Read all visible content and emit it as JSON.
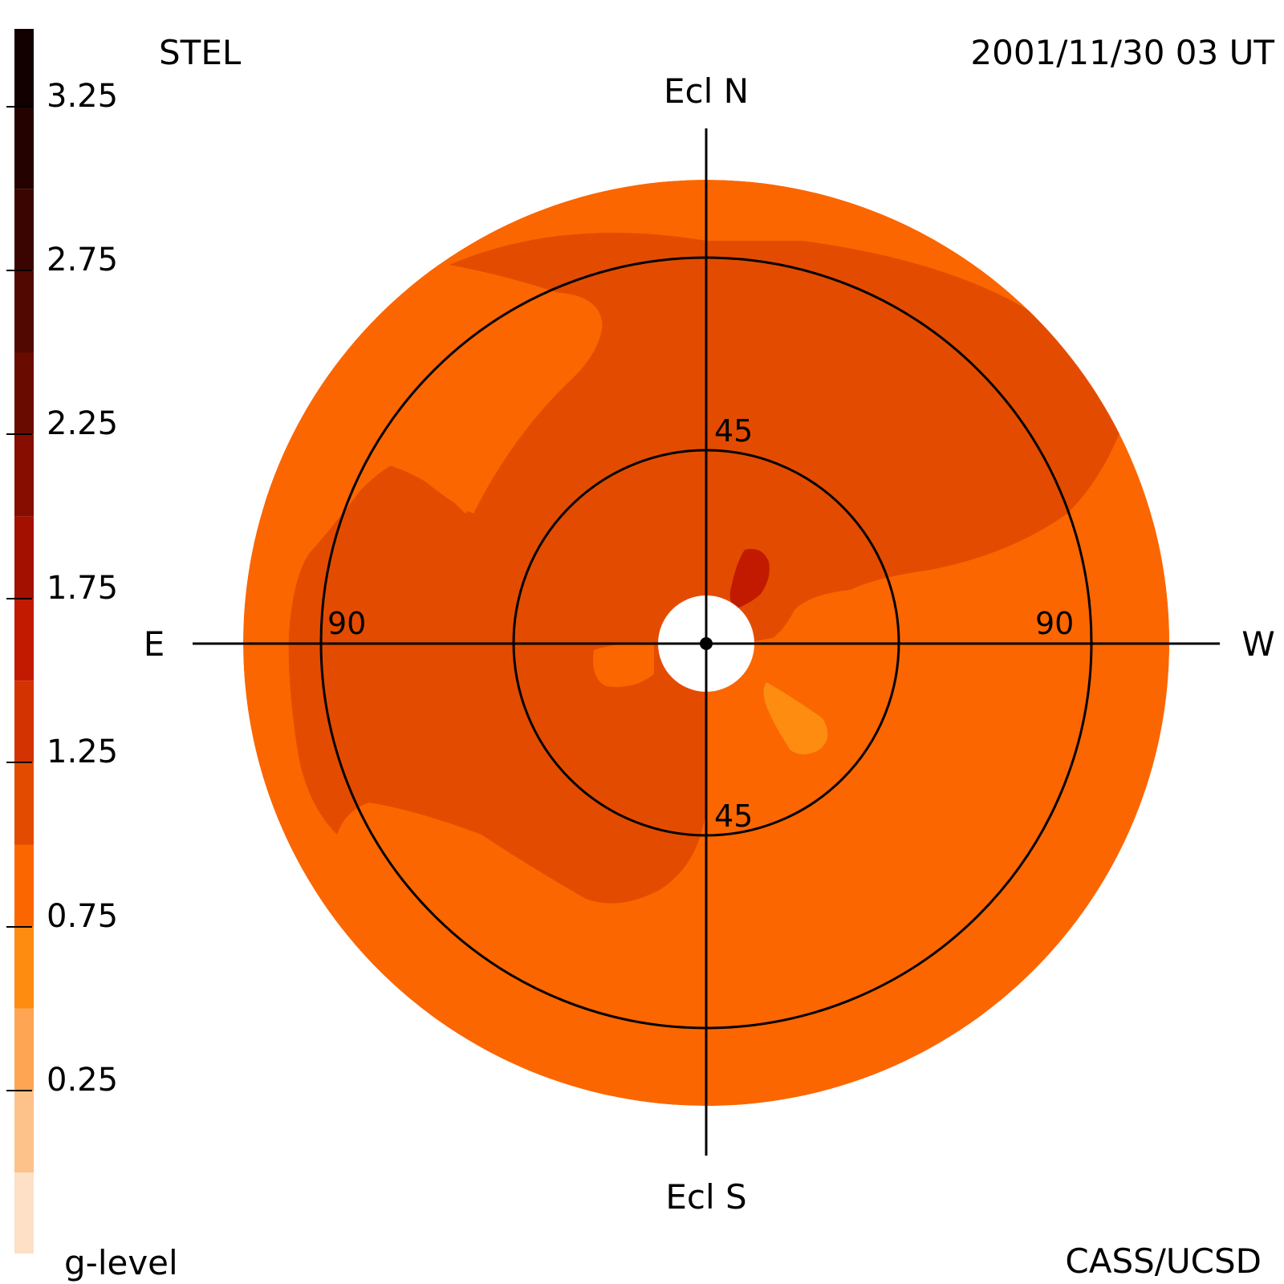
{
  "header": {
    "instrument": "STEL",
    "timestamp": "2001/11/30 03 UT"
  },
  "footer": {
    "colorbar_title": "g-level",
    "credit": "CASS/UCSD"
  },
  "orientation": {
    "north": "Ecl N",
    "south": "Ecl S",
    "east": "E",
    "west": "W"
  },
  "rings": {
    "inner_label_top": "45",
    "inner_label_bottom": "45",
    "outer_label_east": "90",
    "outer_label_west": "90"
  },
  "colorbar": {
    "min": 0,
    "max": 3.5,
    "tick_labels": [
      "3.25",
      "2.75",
      "2.25",
      "1.75",
      "1.25",
      "0.75",
      "0.25"
    ],
    "tick_values": [
      3.25,
      2.75,
      2.25,
      1.75,
      1.25,
      0.75,
      0.25
    ],
    "bands": [
      {
        "from": 3.25,
        "to": 3.5,
        "color": "#120000"
      },
      {
        "from": 3.0,
        "to": 3.25,
        "color": "#230200"
      },
      {
        "from": 2.75,
        "to": 3.0,
        "color": "#3a0500"
      },
      {
        "from": 2.5,
        "to": 2.75,
        "color": "#500800"
      },
      {
        "from": 2.25,
        "to": 2.5,
        "color": "#6a0b00"
      },
      {
        "from": 2.0,
        "to": 2.25,
        "color": "#870d00"
      },
      {
        "from": 1.75,
        "to": 2.0,
        "color": "#a41000"
      },
      {
        "from": 1.5,
        "to": 1.75,
        "color": "#c11a00"
      },
      {
        "from": 1.25,
        "to": 1.5,
        "color": "#d23300"
      },
      {
        "from": 1.0,
        "to": 1.25,
        "color": "#e34c00"
      },
      {
        "from": 0.75,
        "to": 1.0,
        "color": "#fb6600"
      },
      {
        "from": 0.5,
        "to": 0.75,
        "color": "#fd8c10"
      },
      {
        "from": 0.25,
        "to": 0.5,
        "color": "#fda552"
      },
      {
        "from": 0.0,
        "to": 0.25,
        "color": "#fdc18a"
      },
      {
        "from": -0.25,
        "to": 0.0,
        "color": "#fde0c6"
      }
    ]
  },
  "map_colors": {
    "base": "#fb6600",
    "level_1_0": "#e34c00",
    "level_1_5": "#c11a00",
    "level_0_5": "#fd8c10"
  }
}
